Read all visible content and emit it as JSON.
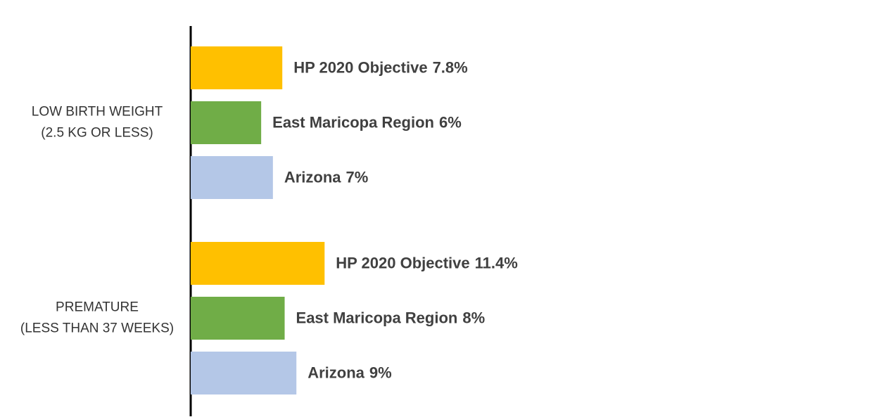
{
  "chart_data": {
    "type": "bar",
    "orientation": "horizontal",
    "categories": [
      [
        "LOW BIRTH WEIGHT",
        "(2.5 KG OR LESS)"
      ],
      [
        "PREMATURE",
        "(LESS THAN 37 WEEKS)"
      ]
    ],
    "series": [
      {
        "name": "HP 2020 Objective",
        "color": "#ffc000",
        "values": [
          7.8,
          11.4
        ],
        "value_labels": [
          "7.8%",
          "11.4%"
        ]
      },
      {
        "name": "East Maricopa Region",
        "color": "#70ad47",
        "values": [
          6,
          8
        ],
        "value_labels": [
          "6%",
          "8%"
        ]
      },
      {
        "name": "Arizona",
        "color": "#b4c7e7",
        "values": [
          7,
          9
        ],
        "value_labels": [
          "7%",
          "9%"
        ]
      }
    ],
    "xlim": [
      0,
      55
    ]
  }
}
